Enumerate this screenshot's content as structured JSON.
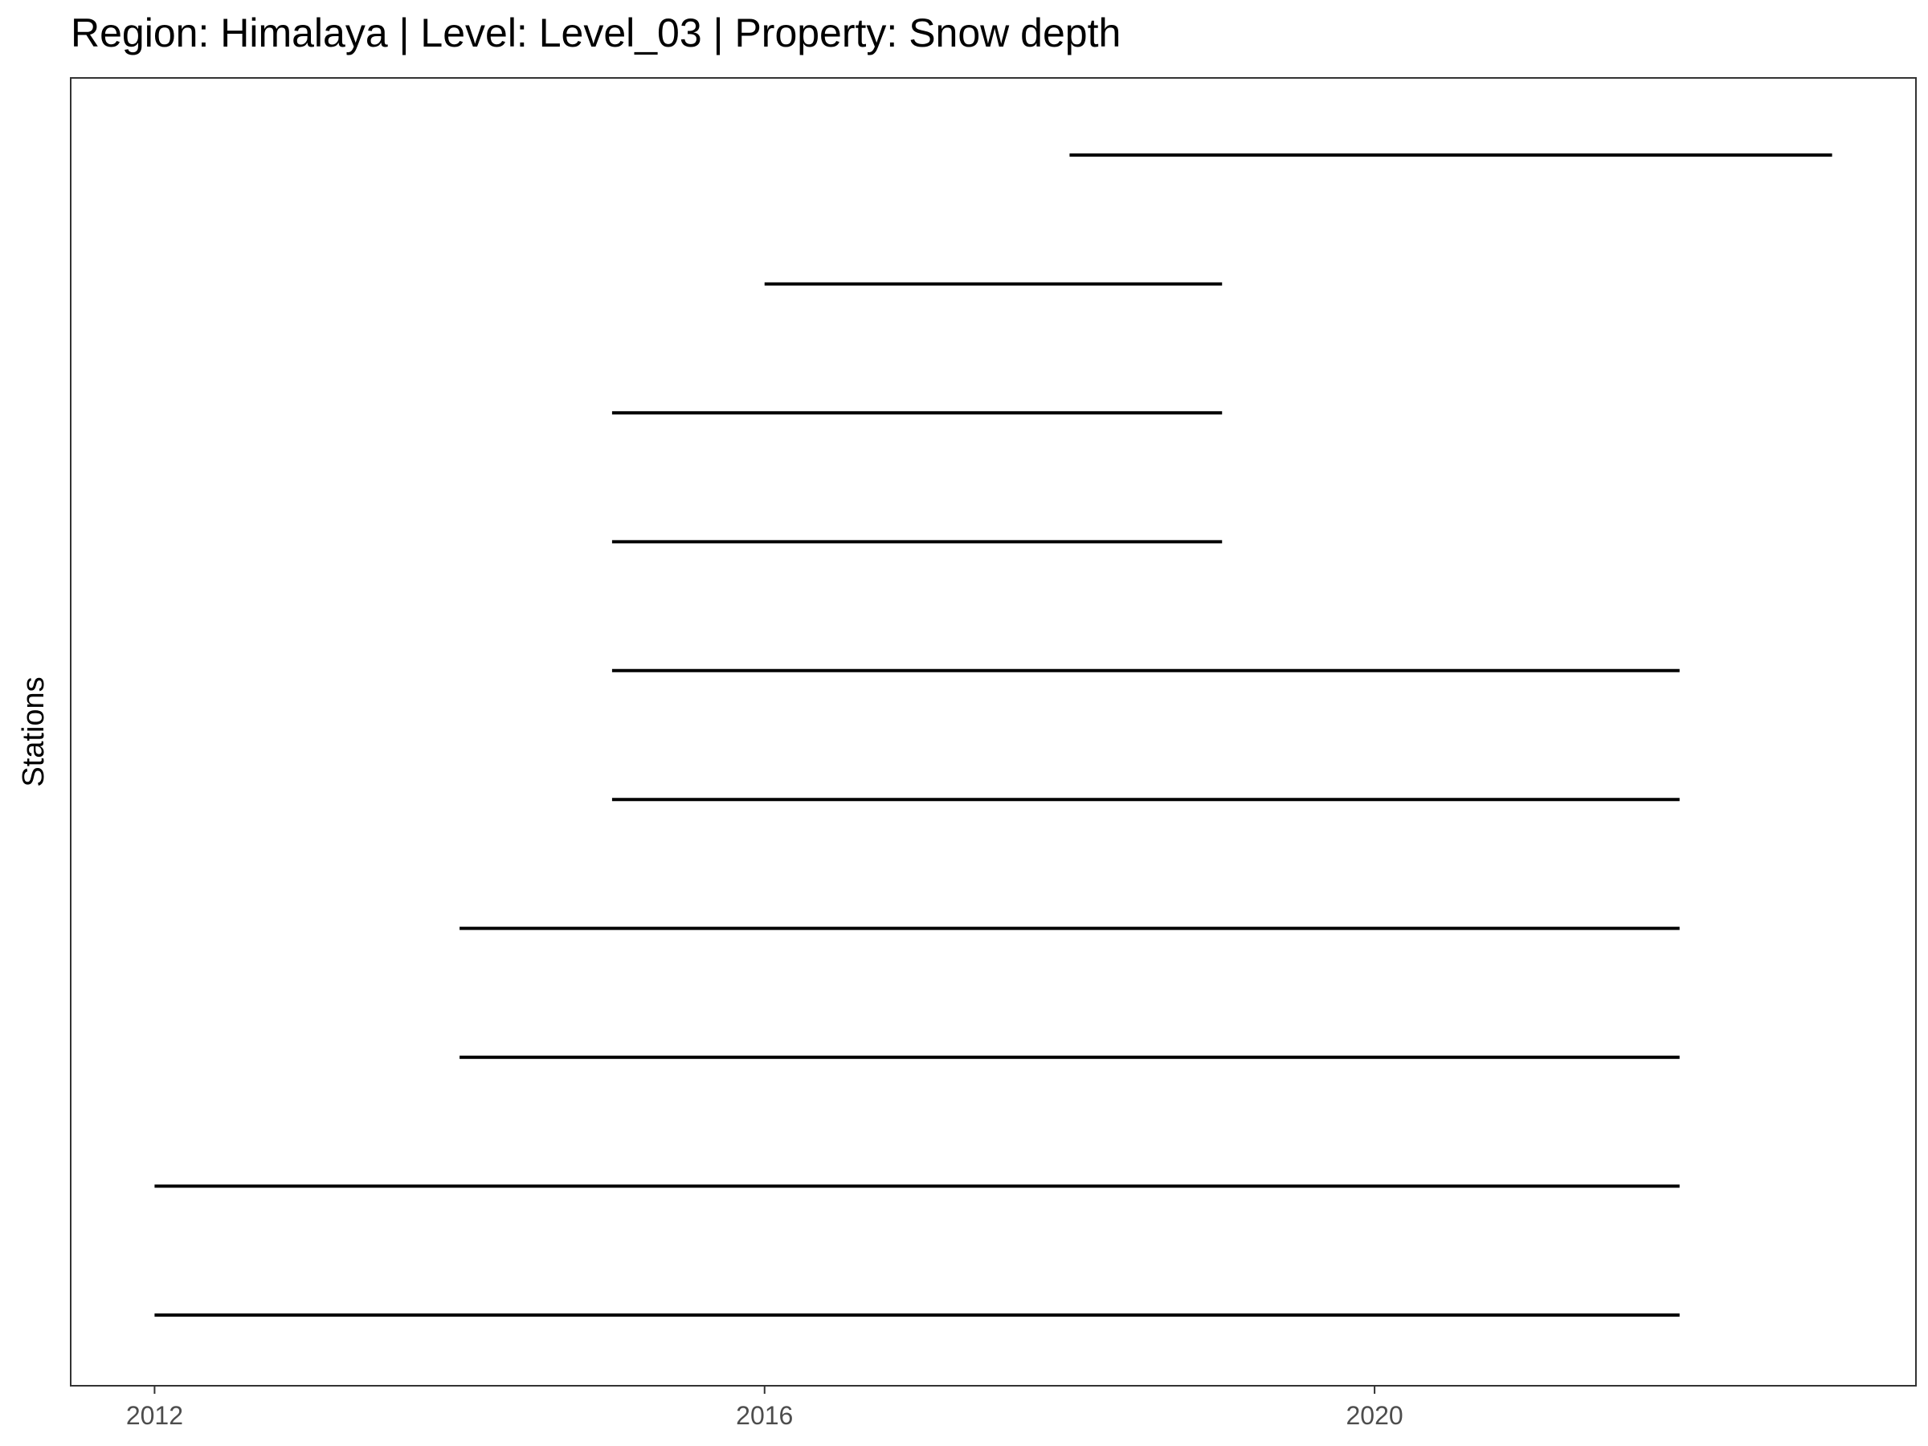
{
  "chart_data": {
    "type": "timeline",
    "title": "Region: Himalaya | Level: Level_03 | Property: Snow depth",
    "xlabel": "",
    "ylabel": "Stations",
    "x_ticks": [
      "2012",
      "2016",
      "2020"
    ],
    "x_tick_values": [
      2012,
      2016,
      2020
    ],
    "xlim": [
      2011.45,
      2023.55
    ],
    "y_tick_labels_shown": false,
    "grid": false,
    "panel_border": true,
    "line_color": "#000000",
    "series": [
      {
        "start": 2012.0,
        "end": 2022.0
      },
      {
        "start": 2012.0,
        "end": 2022.0
      },
      {
        "start": 2014.0,
        "end": 2022.0
      },
      {
        "start": 2014.0,
        "end": 2022.0
      },
      {
        "start": 2015.0,
        "end": 2022.0
      },
      {
        "start": 2015.0,
        "end": 2022.0
      },
      {
        "start": 2015.0,
        "end": 2019.0
      },
      {
        "start": 2015.0,
        "end": 2019.0
      },
      {
        "start": 2016.0,
        "end": 2019.0
      },
      {
        "start": 2018.0,
        "end": 2023.0
      }
    ]
  }
}
